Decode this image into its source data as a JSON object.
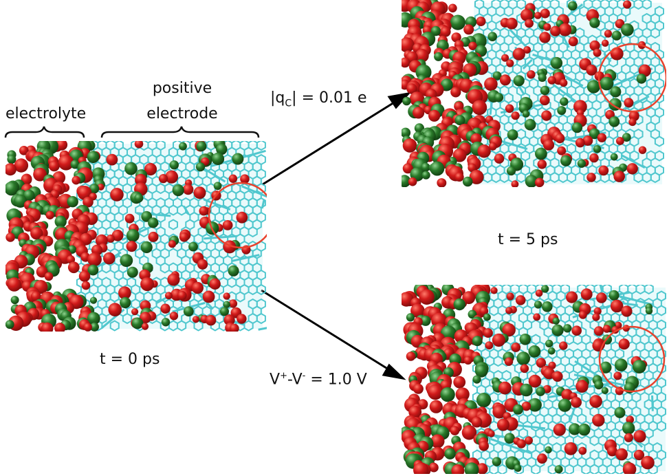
{
  "labels": {
    "electrolyte": "electrolyte",
    "positive": "positive",
    "electrode": "electrode",
    "t0": "t = 0 ps",
    "t5": "t = 5 ps",
    "charge_prefix": "|q",
    "charge_sub": "C",
    "charge_suffix": "| = 0.01 e",
    "volt_v1": "V",
    "volt_sup1": "+",
    "volt_mid": "-V",
    "volt_sup2": "-",
    "volt_suffix": " = 1.0 V"
  },
  "colors": {
    "anion": "#d11a1a",
    "cation": "#2a7a2a",
    "electrode": "#47c5cc",
    "highlight_circle": "#e8412c",
    "arrow": "#000000"
  },
  "legend_meaning": {
    "red_spheres": "anions",
    "green_spheres": "cations",
    "cyan_mesh": "carbon electrode"
  }
}
